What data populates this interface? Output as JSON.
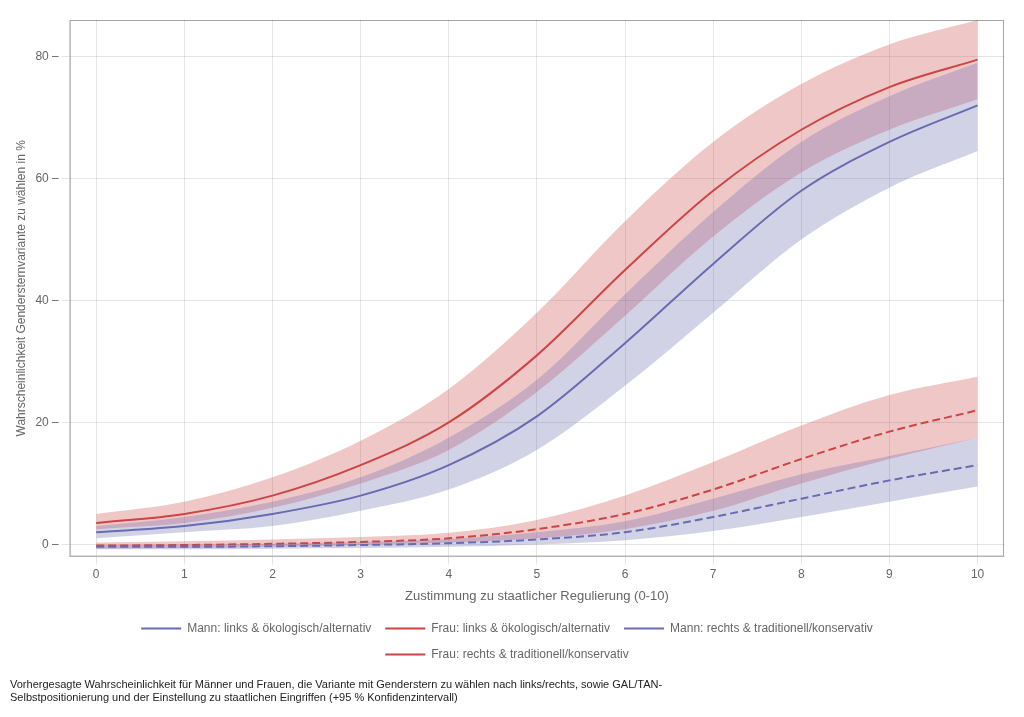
{
  "chart_data": {
    "type": "line",
    "xlabel": "Zustimmung zu staatlicher Regulierung (0-10)",
    "ylabel": "Wahrscheinlichkeit Gendersternvariante zu wählen in %",
    "caption": "Vorhergesagte Wahrscheinlichkeit für Männer und Frauen, die Variante mit Genderstern zu wählen nach links/rechts, sowie GAL/TAN-\nSelbstpositionierung und der Einstellung zu staatlichen Eingriffen (+95 % Konfidenzintervall)",
    "x": [
      0,
      1,
      2,
      3,
      4,
      5,
      6,
      7,
      8,
      9,
      10
    ],
    "xlim": [
      -0.3,
      10.3
    ],
    "xticks": [
      0,
      1,
      2,
      3,
      4,
      5,
      6,
      7,
      8,
      9,
      10
    ],
    "ylim": [
      -2,
      86
    ],
    "yticks": [
      {
        "value": 0,
        "label": "0 –"
      },
      {
        "value": 20,
        "label": "20 –"
      },
      {
        "value": 40,
        "label": "40 –"
      },
      {
        "value": 60,
        "label": "60 –"
      },
      {
        "value": 80,
        "label": "80 –"
      }
    ],
    "grid": true,
    "legend": "bottom",
    "series": [
      {
        "name": "Mann: links & ökologisch/alternativ",
        "color": "#6b6bb0",
        "line_style": "solid",
        "values": [
          2.0,
          3.0,
          5.0,
          8.0,
          13.0,
          21.0,
          33.0,
          46.0,
          58.0,
          66.0,
          72.0
        ],
        "ci_low": [
          1.0,
          2.0,
          3.0,
          5.5,
          9.0,
          15.5,
          26.0,
          38.0,
          50.0,
          58.5,
          64.5
        ],
        "ci_high": [
          3.0,
          4.5,
          7.0,
          11.0,
          17.5,
          27.0,
          41.0,
          54.5,
          66.0,
          73.5,
          79.0
        ]
      },
      {
        "name": "Frau: links & ökologisch/alternativ",
        "color": "#cc4444",
        "line_style": "solid",
        "values": [
          3.5,
          5.0,
          8.0,
          13.0,
          20.0,
          31.0,
          45.0,
          58.0,
          68.0,
          75.0,
          79.5
        ],
        "ci_low": [
          2.5,
          3.5,
          6.0,
          10.0,
          15.5,
          25.0,
          37.5,
          50.5,
          61.0,
          68.0,
          73.0
        ],
        "ci_high": [
          5.0,
          7.0,
          11.0,
          17.0,
          25.5,
          38.0,
          53.0,
          66.0,
          75.5,
          82.0,
          86.0
        ]
      },
      {
        "name": "Mann: rechts & traditionell/konservativ",
        "color": "#6b6bb0",
        "line_style": "dashed",
        "values": [
          -0.4,
          -0.4,
          -0.3,
          -0.1,
          0.2,
          0.8,
          2.0,
          4.5,
          7.5,
          10.5,
          13.0
        ],
        "ci_low": [
          -0.8,
          -0.8,
          -0.7,
          -0.6,
          -0.4,
          0.0,
          0.7,
          2.2,
          4.5,
          7.0,
          9.5
        ],
        "ci_high": [
          -0.1,
          0.0,
          0.1,
          0.4,
          0.9,
          2.0,
          3.8,
          7.5,
          11.5,
          14.5,
          17.5
        ]
      },
      {
        "name": "Frau: rechts & traditionell/konservativ",
        "color": "#cc4444",
        "line_style": "dashed",
        "values": [
          -0.2,
          -0.1,
          0.1,
          0.4,
          1.0,
          2.5,
          5.0,
          9.0,
          14.0,
          18.5,
          22.0
        ],
        "ci_low": [
          -0.7,
          -0.6,
          -0.4,
          -0.1,
          0.3,
          1.0,
          2.5,
          5.5,
          10.0,
          14.0,
          17.5
        ],
        "ci_high": [
          0.3,
          0.5,
          0.8,
          1.2,
          1.9,
          4.0,
          8.0,
          13.5,
          19.5,
          24.5,
          27.5
        ]
      }
    ]
  }
}
